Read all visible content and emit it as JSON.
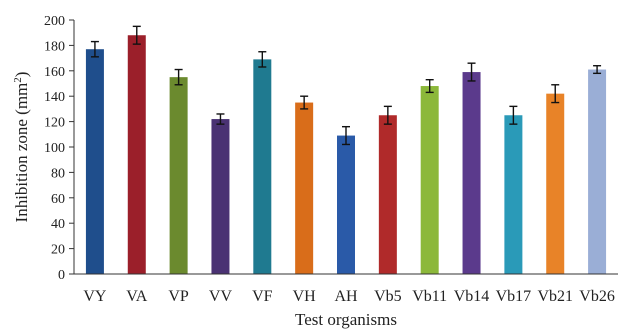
{
  "chart_data": {
    "type": "bar",
    "title": "",
    "xlabel": "Test organisms",
    "ylabel": "Inhibition zone (mm²)",
    "ylabel_main": "Inhibition zone (mm",
    "ylabel_sup": "2",
    "ylabel_close": ")",
    "ylim": [
      0,
      200
    ],
    "yticks": [
      0,
      20,
      40,
      60,
      80,
      100,
      120,
      140,
      160,
      180,
      200
    ],
    "grid": false,
    "legend": "none",
    "categories": [
      "VY",
      "VA",
      "VP",
      "VV",
      "VF",
      "VH",
      "AH",
      "Vb5",
      "Vb11",
      "Vb14",
      "Vb17",
      "Vb21",
      "Vb26"
    ],
    "values": [
      177,
      188,
      155,
      122,
      169,
      135,
      109,
      125,
      148,
      159,
      125,
      142,
      161
    ],
    "errors": [
      6,
      7,
      6,
      4,
      6,
      5,
      7,
      7,
      5,
      7,
      7,
      7,
      3
    ],
    "colors": [
      "#1f4e8c",
      "#9b1f2a",
      "#6b8a2e",
      "#4a3273",
      "#1f7a90",
      "#d96d1a",
      "#2a5aa8",
      "#b02a2a",
      "#8cb83a",
      "#5b3a8c",
      "#2a9ab8",
      "#e88328",
      "#9aaed6"
    ]
  }
}
